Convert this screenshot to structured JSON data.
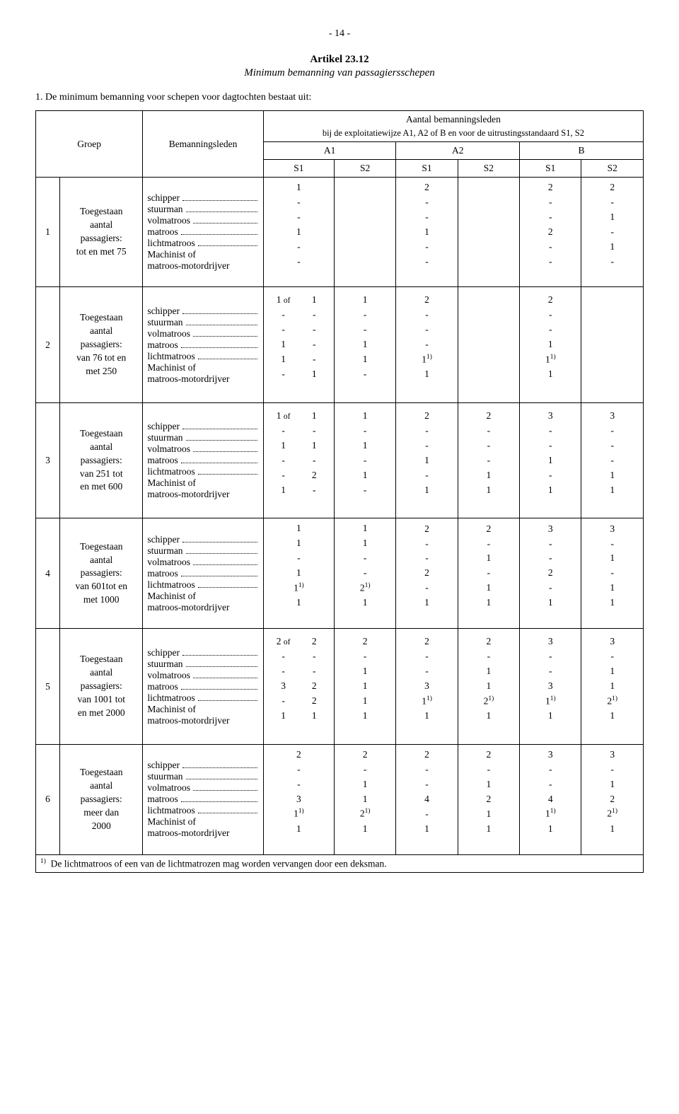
{
  "page_number": "- 14 -",
  "article_title": "Artikel 23.12",
  "article_subtitle": "Minimum bemanning van passagiersschepen",
  "lead_in": "1. De minimum bemanning voor schepen voor dagtochten bestaat uit:",
  "header": {
    "groep": "Groep",
    "bemanningsleden": "Bemanningsleden",
    "aantal": "Aantal bemanningsleden",
    "sub": "bij de exploitatiewijze A1, A2 of B en voor de uitrustingsstandaard S1, S2",
    "A1": "A1",
    "A2": "A2",
    "B": "B",
    "S1": "S1",
    "S2": "S2"
  },
  "crew_labels": {
    "schipper": "schipper",
    "stuurman": "stuurman",
    "volmatroos": "volmatroos",
    "matroos": "matroos",
    "lichtmatroos": "lichtmatroos",
    "machinist": "Machinist of",
    "machinist2": "matroos-motordrijver"
  },
  "of_word": "of",
  "groups": [
    {
      "num": "1",
      "desc": [
        "Toegestaan",
        "aantal",
        "passagiers:",
        "tot en met 75"
      ],
      "a1_s1_split": false,
      "cols": {
        "a1s1": [
          "1",
          "-",
          "-",
          "1",
          "-",
          "-"
        ],
        "a1s2": [
          "",
          "",
          "",
          "",
          "",
          ""
        ],
        "a2s1": [
          "2",
          "-",
          "-",
          "1",
          "-",
          "-"
        ],
        "a2s2": [
          "",
          "",
          "",
          "",
          "",
          ""
        ],
        "bs1": [
          "2",
          "-",
          "-",
          "2",
          "-",
          "-"
        ],
        "bs2": [
          "2",
          "-",
          "1",
          "-",
          "1",
          "-"
        ]
      }
    },
    {
      "num": "2",
      "desc": [
        "Toegestaan",
        "aantal",
        "passagiers:",
        "van 76 tot en",
        "met 250"
      ],
      "a1_s1_split": true,
      "a1_of": true,
      "cols": {
        "a1s1a": [
          "1",
          "-",
          "-",
          "1",
          "1",
          "-"
        ],
        "a1s1b": [
          "1",
          "-",
          "-",
          "-",
          "-",
          "1"
        ],
        "a1s2": [
          "1",
          "-",
          "-",
          "1",
          "1",
          "-"
        ],
        "a2s1": [
          "2",
          "-",
          "-",
          "-",
          "1<sup>1)</sup>",
          "1"
        ],
        "a2s2": [
          "",
          "",
          "",
          "",
          "",
          ""
        ],
        "bs1": [
          "2",
          "-",
          "-",
          "1",
          "1<sup>1)</sup>",
          "1"
        ],
        "bs2": [
          "",
          "",
          "",
          "",
          "",
          ""
        ]
      }
    },
    {
      "num": "3",
      "desc": [
        "Toegestaan",
        "aantal",
        "passagiers:",
        "van 251 tot",
        "en met 600"
      ],
      "a1_s1_split": true,
      "a1_of": true,
      "cols": {
        "a1s1a": [
          "1",
          "-",
          "1",
          "-",
          "-",
          "1"
        ],
        "a1s1b": [
          "1",
          "-",
          "1",
          "-",
          "2",
          "-"
        ],
        "a1s2": [
          "1",
          "-",
          "1",
          "-",
          "1",
          "-"
        ],
        "a2s1": [
          "2",
          "-",
          "-",
          "1",
          "-",
          "1"
        ],
        "a2s2": [
          "2",
          "-",
          "-",
          "-",
          "1",
          "1"
        ],
        "bs1": [
          "3",
          "-",
          "-",
          "1",
          "-",
          "1"
        ],
        "bs2": [
          "3",
          "-",
          "-",
          "-",
          "1",
          "1"
        ]
      }
    },
    {
      "num": "4",
      "desc": [
        "Toegestaan",
        "aantal",
        "passagiers:",
        "van 601tot en",
        "met 1000"
      ],
      "a1_s1_split": false,
      "cols": {
        "a1s1": [
          "1",
          "1",
          "-",
          "1",
          "1<sup>1)</sup>",
          "1"
        ],
        "a1s2": [
          "1",
          "1",
          "-",
          "-",
          "2<sup>1)</sup>",
          "1"
        ],
        "a2s1": [
          "2",
          "-",
          "-",
          "2",
          "-",
          "1"
        ],
        "a2s2": [
          "2",
          "-",
          "1",
          "-",
          "1",
          "1"
        ],
        "bs1": [
          "3",
          "-",
          "-",
          "2",
          "-",
          "1"
        ],
        "bs2": [
          "3",
          "-",
          "1",
          "-",
          "1",
          "1"
        ]
      }
    },
    {
      "num": "5",
      "desc": [
        "Toegestaan",
        "aantal",
        "passagiers:",
        "van 1001 tot",
        "en met 2000"
      ],
      "a1_s1_split": true,
      "a1_of": true,
      "cols": {
        "a1s1a": [
          "2",
          "-",
          "-",
          "3",
          "-",
          "1"
        ],
        "a1s1b": [
          "2",
          "-",
          "-",
          "2",
          "2",
          "1"
        ],
        "a1s2": [
          "2",
          "-",
          "1",
          "1",
          "1",
          "1"
        ],
        "a2s1": [
          "2",
          "-",
          "-",
          "3",
          "1<sup>1)</sup>",
          "1"
        ],
        "a2s2": [
          "2",
          "-",
          "1",
          "1",
          "2<sup>1)</sup>",
          "1"
        ],
        "bs1": [
          "3",
          "-",
          "-",
          "3",
          "1<sup>1)</sup>",
          "1"
        ],
        "bs2": [
          "3",
          "-",
          "1",
          "1",
          "2<sup>1)</sup>",
          "1"
        ]
      }
    },
    {
      "num": "6",
      "desc": [
        "Toegestaan",
        "aantal",
        "passagiers:",
        "meer dan",
        "2000"
      ],
      "a1_s1_split": false,
      "cols": {
        "a1s1": [
          "2",
          "-",
          "-",
          "3",
          "1<sup>1)</sup>",
          "1"
        ],
        "a1s2": [
          "2",
          "-",
          "1",
          "1",
          "2<sup>1)</sup>",
          "1"
        ],
        "a2s1": [
          "2",
          "-",
          "-",
          "4",
          "-",
          "1"
        ],
        "a2s2": [
          "2",
          "-",
          "1",
          "2",
          "1",
          "1"
        ],
        "bs1": [
          "3",
          "-",
          "-",
          "4",
          "1<sup>1)</sup>",
          "1"
        ],
        "bs2": [
          "3",
          "-",
          "1",
          "2",
          "2<sup>1)</sup>",
          "1"
        ]
      }
    }
  ],
  "footnote_marker": "1)",
  "footnote_text": "De lichtmatroos of een van de lichtmatrozen mag worden vervangen door een deksman."
}
